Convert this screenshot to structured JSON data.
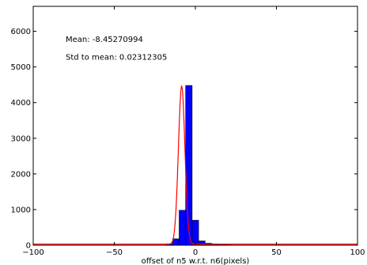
{
  "chart_data": {
    "type": "bar",
    "title": "",
    "xlabel": "offset of n5 w.r.t. n6(pixels)",
    "ylabel": "",
    "xlim": [
      -100,
      100
    ],
    "ylim": [
      0,
      6700
    ],
    "xticks": [
      -100,
      -50,
      0,
      50,
      100
    ],
    "xtick_labels": [
      "−100",
      "−50",
      "0",
      "50",
      "100"
    ],
    "yticks": [
      0,
      1000,
      2000,
      3000,
      4000,
      5000,
      6000
    ],
    "ytick_labels": [
      "0",
      "1000",
      "2000",
      "3000",
      "4000",
      "5000",
      "6000"
    ],
    "grid": false,
    "bar_color": "#0000ff",
    "curve_color": "#ff0000",
    "bins": [
      {
        "x0": -22,
        "x1": -18,
        "value": 5
      },
      {
        "x0": -18,
        "x1": -14,
        "value": 40
      },
      {
        "x0": -14,
        "x1": -10,
        "value": 180
      },
      {
        "x0": -10,
        "x1": -6,
        "value": 980
      },
      {
        "x0": -6,
        "x1": -2,
        "value": 4480
      },
      {
        "x0": -2,
        "x1": 2,
        "value": 700
      },
      {
        "x0": 2,
        "x1": 6,
        "value": 120
      },
      {
        "x0": 6,
        "x1": 10,
        "value": 55
      },
      {
        "x0": 10,
        "x1": 14,
        "value": 40
      },
      {
        "x0": 14,
        "x1": 18,
        "value": 30
      },
      {
        "x0": 18,
        "x1": 22,
        "value": 10
      }
    ],
    "fit_curve": {
      "label": "",
      "mean": -8.45270994,
      "peak": 4480,
      "sigma": 2.0,
      "baseline": 30
    },
    "annotations": [
      {
        "text": "Mean: -8.45270994",
        "x": -80,
        "y": 5700
      },
      {
        "text": "Std to mean: 0.02312305",
        "x": -80,
        "y": 5200
      }
    ]
  }
}
